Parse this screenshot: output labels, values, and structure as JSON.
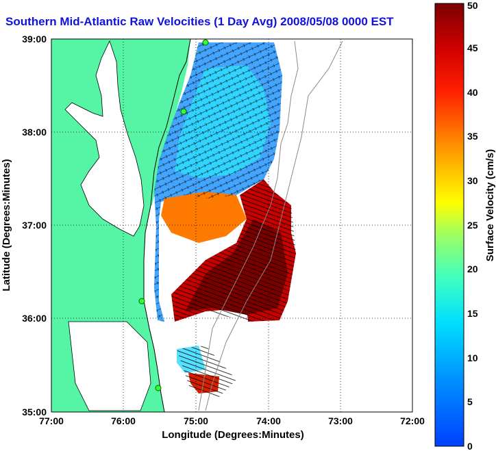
{
  "title": "Southern Mid-Atlantic Raw Velocities (1 Day Avg) 2008/05/08 0000 EST",
  "xlabel": "Longitude (Degrees:Minutes)",
  "ylabel": "Latitude (Degrees:Minutes)",
  "colorbar_label": "Surface Velocity (cm/s)",
  "x_ticks": [
    "77:00",
    "76:00",
    "75:00",
    "74:00",
    "73:00",
    "72:00"
  ],
  "y_ticks": [
    "39:00",
    "38:00",
    "37:00",
    "36:00",
    "35:00"
  ],
  "colorbar_ticks": [
    "0",
    "5",
    "10",
    "15",
    "20",
    "25",
    "30",
    "35",
    "40",
    "45",
    "50"
  ],
  "colors": {
    "land": "#55f5a5",
    "title": "#1010e0"
  },
  "map": {
    "lon_range": [
      -77,
      -72
    ],
    "lat_range": [
      35,
      39
    ],
    "velocity_range_cms": [
      0,
      50
    ],
    "grid": true
  }
}
